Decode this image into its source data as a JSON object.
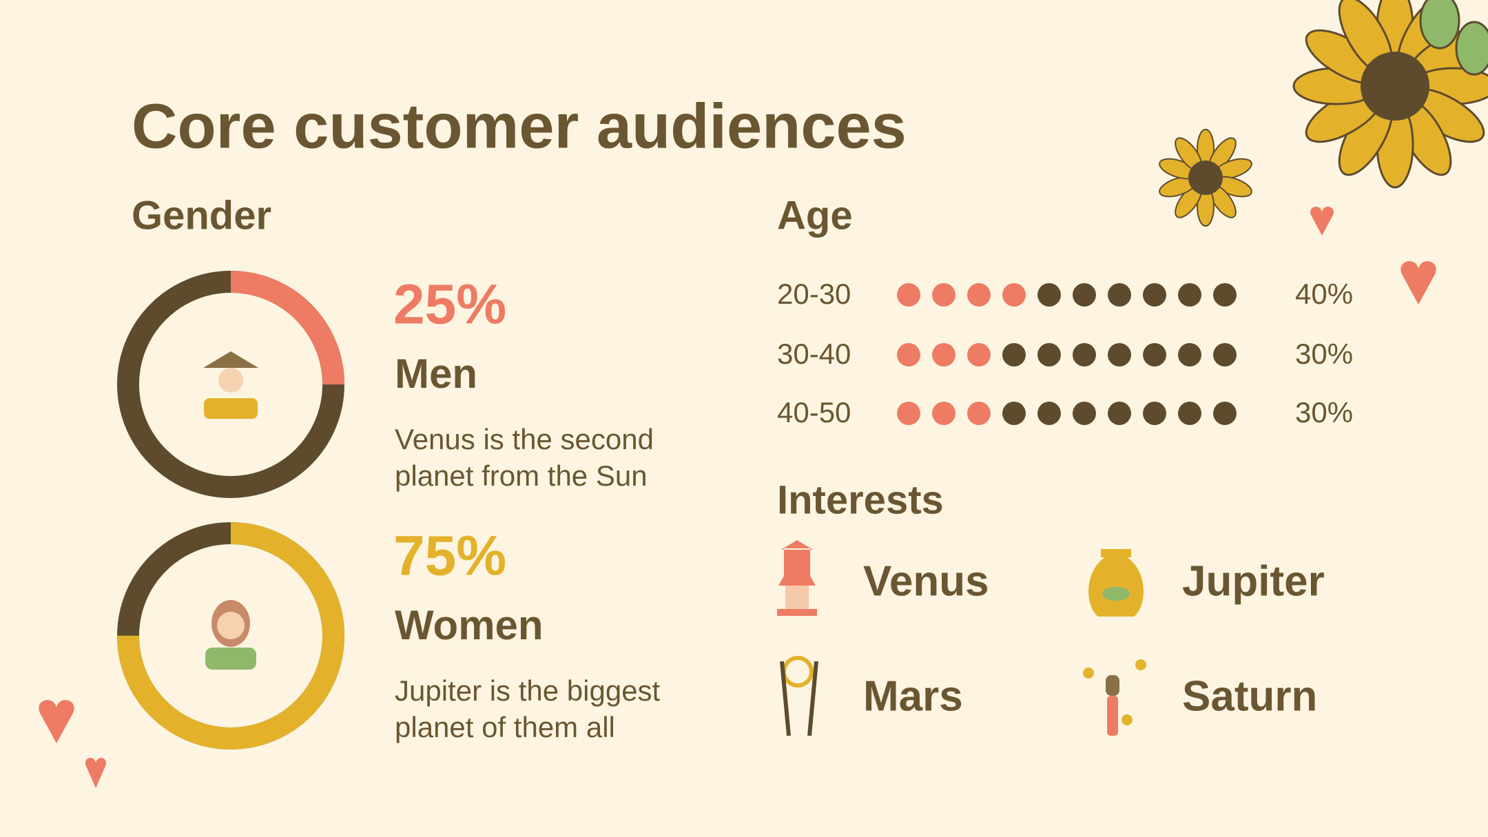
{
  "title": "Core customer audiences",
  "gender": {
    "heading": "Gender",
    "groups": [
      {
        "percent": {
          "value": 25,
          "label": "25%"
        },
        "color": "#ee7b63",
        "name": "Men",
        "description": [
          "Venus is the second",
          "planet from the Sun"
        ]
      },
      {
        "percent": {
          "value": 75,
          "label": "75%"
        },
        "color": "#e3b22a",
        "name": "Women",
        "description": [
          "Jupiter is the biggest",
          "planet of them all"
        ]
      }
    ]
  },
  "age": {
    "heading": "Age",
    "rows": [
      {
        "range": "20-30",
        "percent": {
          "value": 40,
          "label": "40%"
        }
      },
      {
        "range": "30-40",
        "percent": {
          "value": 30,
          "label": "30%"
        }
      },
      {
        "range": "40-50",
        "percent": {
          "value": 30,
          "label": "30%"
        }
      }
    ]
  },
  "interests": {
    "heading": "Interests",
    "items": [
      "Venus",
      "Jupiter",
      "Mars",
      "Saturn"
    ]
  }
}
